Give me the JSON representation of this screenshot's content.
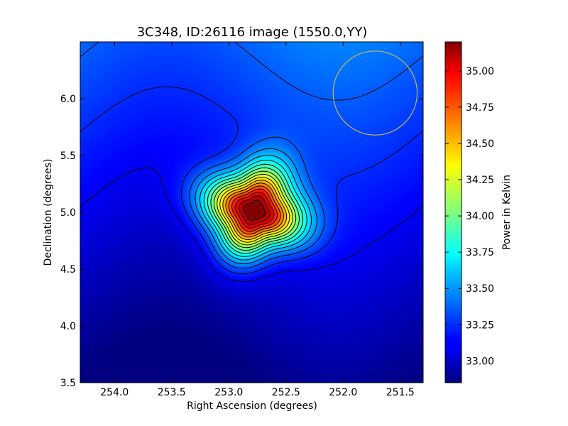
{
  "chart_data": {
    "type": "heatmap",
    "title": "3C348, ID:26116 image (1550.0,YY)",
    "xlabel": "Right Ascension (degrees)",
    "ylabel": "Declination (degrees)",
    "xlim": [
      254.3,
      251.3
    ],
    "ylim": [
      3.5,
      6.5
    ],
    "x_ticks": [
      "254.0",
      "253.5",
      "253.0",
      "252.5",
      "252.0",
      "251.5"
    ],
    "y_ticks": [
      "3.5",
      "4.0",
      "4.5",
      "5.0",
      "5.5",
      "6.0"
    ],
    "x_tick_values": [
      254.0,
      253.5,
      253.0,
      252.5,
      252.0,
      251.5
    ],
    "y_tick_values": [
      3.5,
      4.0,
      4.5,
      5.0,
      5.5,
      6.0
    ],
    "colorbar": {
      "label": "Power in Kelvin",
      "range": [
        32.85,
        35.2
      ],
      "ticks": [
        "33.00",
        "33.25",
        "33.50",
        "33.75",
        "34.00",
        "34.25",
        "34.50",
        "34.75",
        "35.00"
      ],
      "tick_values": [
        33.0,
        33.25,
        33.5,
        33.75,
        34.0,
        34.25,
        34.5,
        34.75,
        35.0
      ],
      "colormap": "jet"
    },
    "source": {
      "ra": 252.78,
      "dec": 5.01,
      "peak": 35.2
    },
    "beam_circle": {
      "ra": 251.72,
      "dec": 6.05,
      "radius_deg": 0.37,
      "color": "#c8b850"
    },
    "contour_count": 18
  }
}
